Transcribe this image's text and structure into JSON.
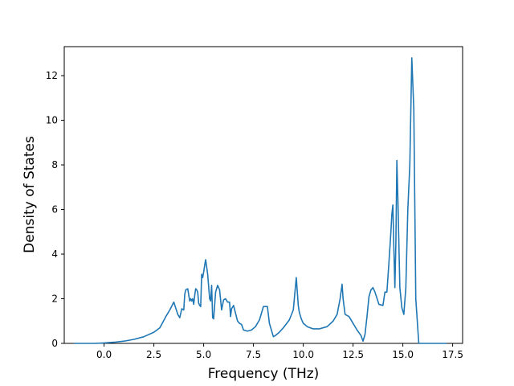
{
  "chart_data": {
    "type": "line",
    "title": "",
    "xlabel": "Frequency (THz)",
    "ylabel": "Density of States",
    "xlim": [
      -2.0,
      18.0
    ],
    "ylim": [
      0,
      13.3
    ],
    "x_ticks": [
      0.0,
      2.5,
      5.0,
      7.5,
      10.0,
      12.5,
      15.0,
      17.5
    ],
    "x_tick_labels": [
      "0.0",
      "2.5",
      "5.0",
      "7.5",
      "10.0",
      "12.5",
      "15.0",
      "17.5"
    ],
    "y_ticks": [
      0,
      2,
      4,
      6,
      8,
      10,
      12
    ],
    "y_tick_labels": [
      "0",
      "2",
      "4",
      "6",
      "8",
      "10",
      "12"
    ],
    "grid": false,
    "legend": "none",
    "line_color": "#1f77b4",
    "series": [
      {
        "x": [
          -1.5,
          -0.5,
          0.0,
          0.5,
          1.0,
          1.5,
          2.0,
          2.5,
          2.8,
          3.1,
          3.3,
          3.5,
          3.7,
          3.8,
          3.9,
          4.0,
          4.05,
          4.1,
          4.2,
          4.3,
          4.35,
          4.4,
          4.45,
          4.5,
          4.55,
          4.6,
          4.65,
          4.7,
          4.75,
          4.8,
          4.85,
          4.9,
          4.95,
          5.0,
          5.05,
          5.1,
          5.2,
          5.3,
          5.35,
          5.4,
          5.45,
          5.5,
          5.6,
          5.7,
          5.8,
          5.9,
          6.0,
          6.1,
          6.2,
          6.3,
          6.35,
          6.4,
          6.5,
          6.6,
          6.7,
          6.8,
          6.9,
          7.0,
          7.2,
          7.4,
          7.6,
          7.8,
          8.0,
          8.2,
          8.3,
          8.4,
          8.5,
          8.6,
          8.8,
          9.0,
          9.3,
          9.5,
          9.65,
          9.75,
          9.8,
          9.9,
          10.0,
          10.2,
          10.5,
          10.8,
          11.0,
          11.2,
          11.5,
          11.7,
          11.85,
          11.95,
          12.0,
          12.1,
          12.3,
          12.5,
          12.7,
          12.9,
          13.0,
          13.1,
          13.2,
          13.3,
          13.4,
          13.5,
          13.6,
          13.8,
          14.0,
          14.1,
          14.2,
          14.3,
          14.4,
          14.45,
          14.5,
          14.55,
          14.6,
          14.65,
          14.7,
          14.75,
          14.85,
          14.95,
          15.05,
          15.15,
          15.25,
          15.35,
          15.45,
          15.55,
          15.65,
          15.8,
          16.5,
          17.2
        ],
        "y": [
          0,
          0,
          0.02,
          0.05,
          0.1,
          0.18,
          0.3,
          0.5,
          0.7,
          1.2,
          1.5,
          1.85,
          1.3,
          1.15,
          1.55,
          1.5,
          2.2,
          2.4,
          2.45,
          1.9,
          2.0,
          1.9,
          2.0,
          1.75,
          2.15,
          2.45,
          2.4,
          2.3,
          1.8,
          1.7,
          1.65,
          3.1,
          2.95,
          3.2,
          3.5,
          3.75,
          3.1,
          2.0,
          1.9,
          2.6,
          1.15,
          1.1,
          2.3,
          2.6,
          2.4,
          1.5,
          1.95,
          2.0,
          1.85,
          1.85,
          1.2,
          1.55,
          1.7,
          1.35,
          1.0,
          0.9,
          0.85,
          0.6,
          0.55,
          0.6,
          0.75,
          1.05,
          1.65,
          1.65,
          0.9,
          0.6,
          0.3,
          0.35,
          0.5,
          0.7,
          1.05,
          1.5,
          2.95,
          1.7,
          1.4,
          1.1,
          0.9,
          0.75,
          0.65,
          0.65,
          0.7,
          0.75,
          1.0,
          1.3,
          2.0,
          2.65,
          2.0,
          1.3,
          1.2,
          0.9,
          0.6,
          0.35,
          0.1,
          0.4,
          1.2,
          2.1,
          2.4,
          2.5,
          2.3,
          1.75,
          1.7,
          2.3,
          2.3,
          3.6,
          5.0,
          5.8,
          6.2,
          4.2,
          2.5,
          4.5,
          8.2,
          6.5,
          2.5,
          1.6,
          1.3,
          2.5,
          6.0,
          8.0,
          12.8,
          10.5,
          2.0,
          0,
          0,
          0
        ]
      }
    ]
  }
}
